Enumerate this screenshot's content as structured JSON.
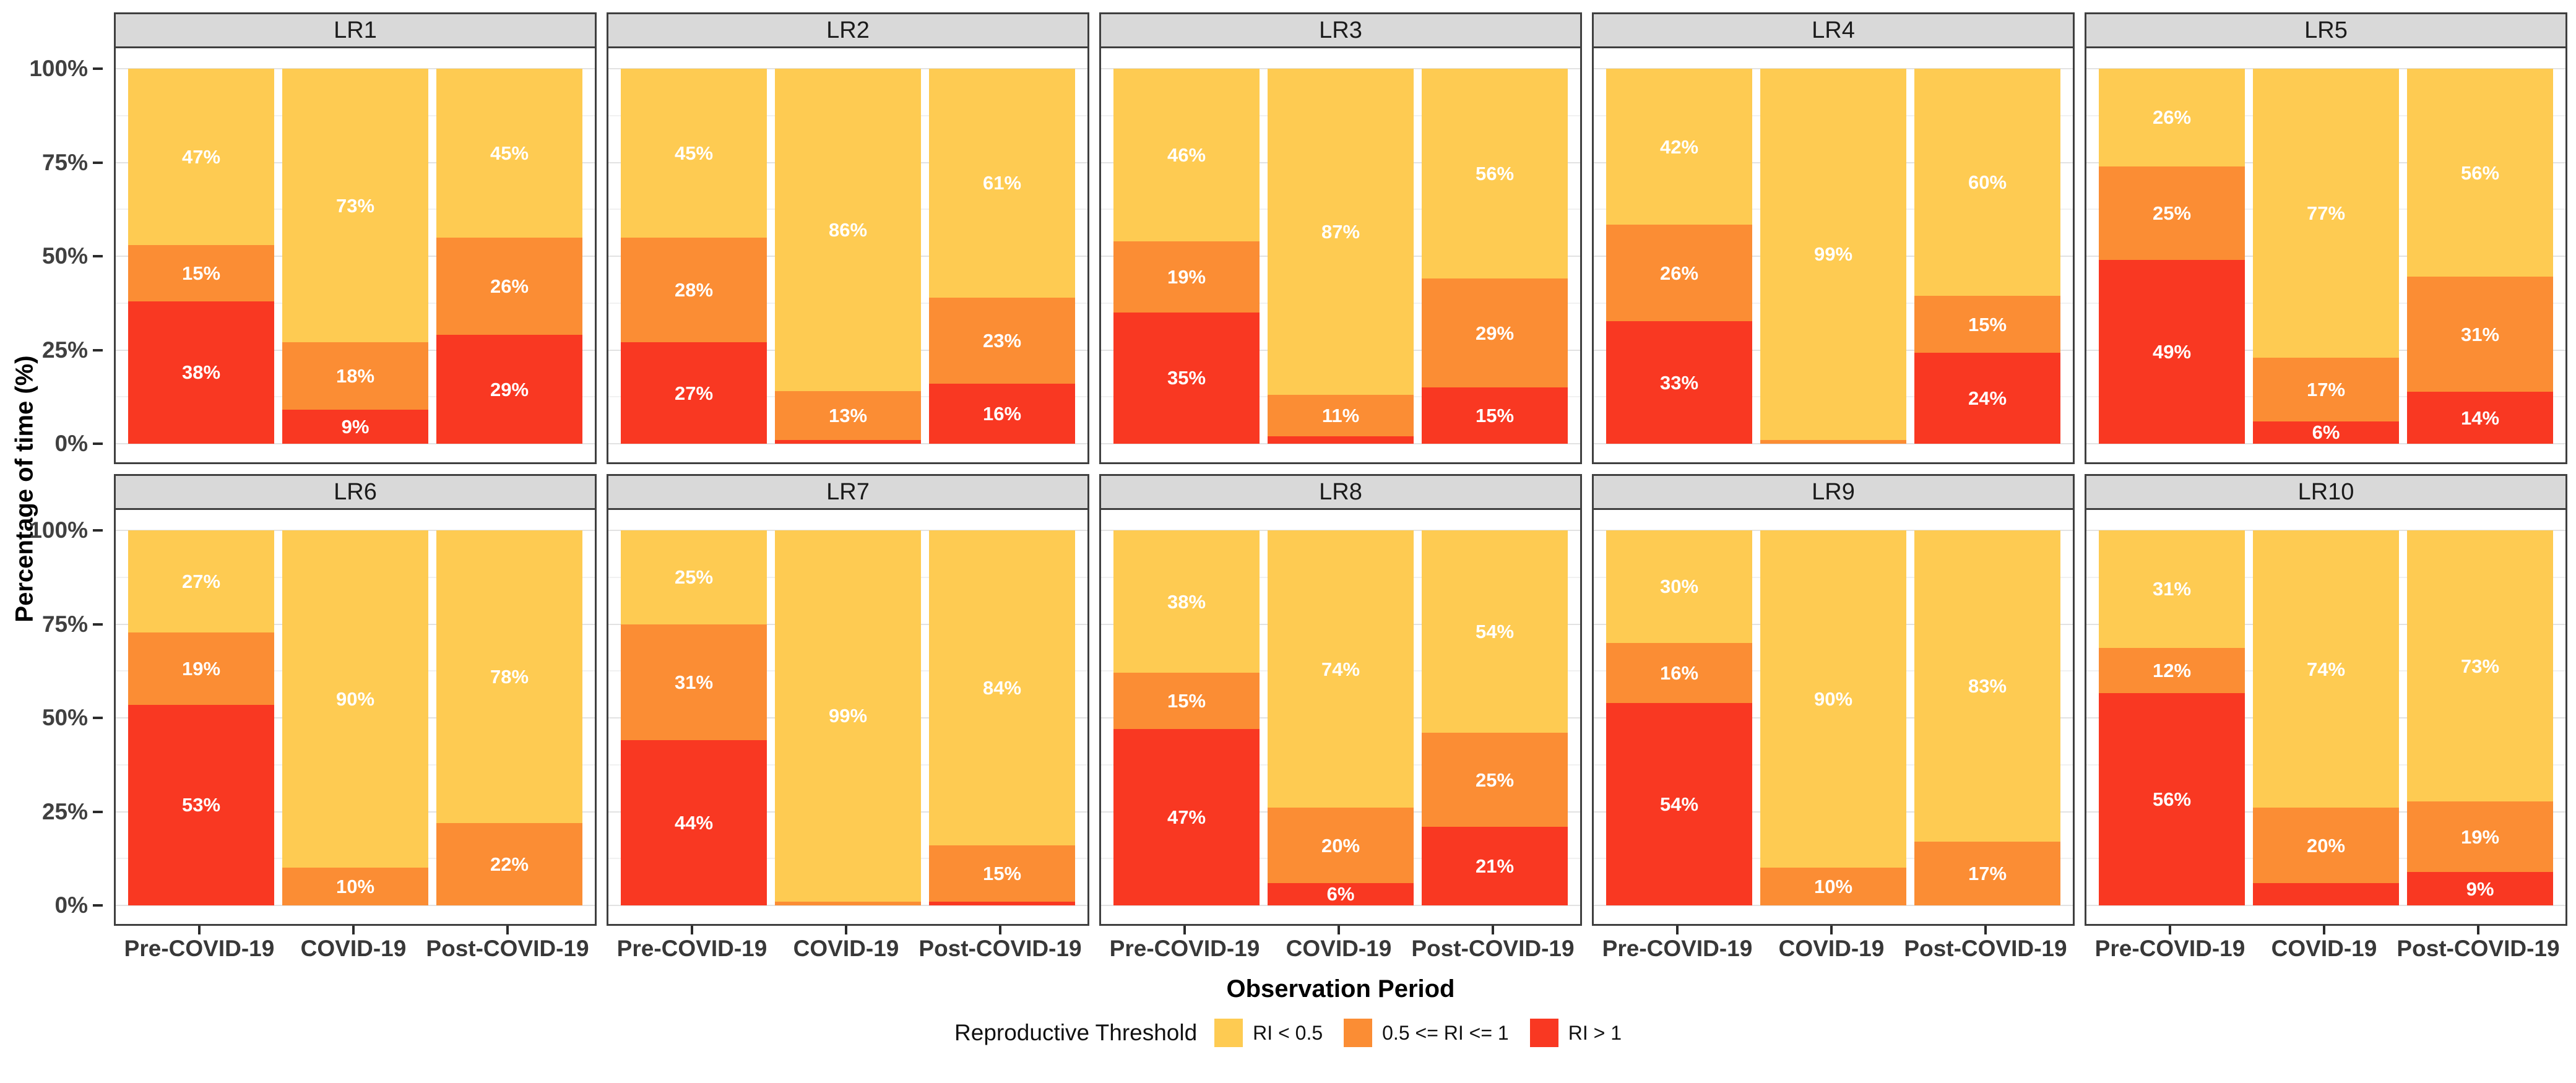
{
  "chart_data": {
    "type": "bar",
    "variant": "stacked-percent-faceted",
    "ylabel": "Percentage of time (%)",
    "xlabel": "Observation Period",
    "categories": [
      "Pre-COVID-19",
      "COVID-19",
      "Post-COVID-19"
    ],
    "y_ticks": [
      {
        "label": "0%",
        "value": 0
      },
      {
        "label": "25%",
        "value": 25
      },
      {
        "label": "50%",
        "value": 50
      },
      {
        "label": "75%",
        "value": 75
      },
      {
        "label": "100%",
        "value": 100
      }
    ],
    "y_minor_gridlines": [
      12.5,
      37.5,
      62.5,
      87.5
    ],
    "ylim": [
      0,
      100
    ],
    "grid": "on",
    "legend_position": "bottom",
    "legend": {
      "title": "Reproductive Threshold",
      "items": [
        {
          "label": "RI < 0.5",
          "color": "#FECB52"
        },
        {
          "label": "0.5 <= RI <= 1",
          "color": "#FB8D34"
        },
        {
          "label": "RI > 1",
          "color": "#F93822"
        }
      ]
    },
    "segment_order_top_to_bottom": [
      "RI < 0.5",
      "0.5 <= RI <= 1",
      "RI > 1"
    ],
    "facets": [
      {
        "name": "LR1",
        "values": [
          [
            47,
            15,
            38
          ],
          [
            73,
            18,
            9
          ],
          [
            45,
            26,
            29
          ]
        ],
        "labels": [
          [
            "47%",
            "15%",
            "38%"
          ],
          [
            "73%",
            "18%",
            "9%"
          ],
          [
            "45%",
            "26%",
            "29%"
          ]
        ]
      },
      {
        "name": "LR2",
        "values": [
          [
            45,
            28,
            27
          ],
          [
            86,
            13,
            1
          ],
          [
            61,
            23,
            16
          ]
        ],
        "labels": [
          [
            "45%",
            "28%",
            "27%"
          ],
          [
            "86%",
            "13%",
            ""
          ],
          [
            "61%",
            "23%",
            "16%"
          ]
        ]
      },
      {
        "name": "LR3",
        "values": [
          [
            46,
            19,
            35
          ],
          [
            87,
            11,
            2
          ],
          [
            56,
            29,
            15
          ]
        ],
        "labels": [
          [
            "46%",
            "19%",
            "35%"
          ],
          [
            "87%",
            "11%",
            ""
          ],
          [
            "56%",
            "29%",
            "15%"
          ]
        ]
      },
      {
        "name": "LR4",
        "values": [
          [
            42,
            26,
            33
          ],
          [
            99,
            1,
            0
          ],
          [
            60,
            15,
            24
          ]
        ],
        "labels": [
          [
            "42%",
            "26%",
            "33%"
          ],
          [
            "99%",
            "",
            ""
          ],
          [
            "60%",
            "15%",
            "24%"
          ]
        ]
      },
      {
        "name": "LR5",
        "values": [
          [
            26,
            25,
            49
          ],
          [
            77,
            17,
            6
          ],
          [
            56,
            31,
            14
          ]
        ],
        "labels": [
          [
            "26%",
            "25%",
            "49%"
          ],
          [
            "77%",
            "17%",
            "6%"
          ],
          [
            "56%",
            "31%",
            "14%"
          ]
        ]
      },
      {
        "name": "LR6",
        "values": [
          [
            27,
            19,
            53
          ],
          [
            90,
            10,
            0
          ],
          [
            78,
            22,
            0
          ]
        ],
        "labels": [
          [
            "27%",
            "19%",
            "53%"
          ],
          [
            "90%",
            "10%",
            ""
          ],
          [
            "78%",
            "22%",
            ""
          ]
        ]
      },
      {
        "name": "LR7",
        "values": [
          [
            25,
            31,
            44
          ],
          [
            99,
            1,
            0
          ],
          [
            84,
            15,
            1
          ]
        ],
        "labels": [
          [
            "25%",
            "31%",
            "44%"
          ],
          [
            "99%",
            "",
            ""
          ],
          [
            "84%",
            "15%",
            ""
          ]
        ]
      },
      {
        "name": "LR8",
        "values": [
          [
            38,
            15,
            47
          ],
          [
            74,
            20,
            6
          ],
          [
            54,
            25,
            21
          ]
        ],
        "labels": [
          [
            "38%",
            "15%",
            "47%"
          ],
          [
            "74%",
            "20%",
            "6%"
          ],
          [
            "54%",
            "25%",
            "21%"
          ]
        ]
      },
      {
        "name": "LR9",
        "values": [
          [
            30,
            16,
            54
          ],
          [
            90,
            10,
            0
          ],
          [
            83,
            17,
            0
          ]
        ],
        "labels": [
          [
            "30%",
            "16%",
            "54%"
          ],
          [
            "90%",
            "10%",
            ""
          ],
          [
            "83%",
            "17%",
            ""
          ]
        ]
      },
      {
        "name": "LR10",
        "values": [
          [
            31,
            12,
            56
          ],
          [
            74,
            20,
            6
          ],
          [
            73,
            19,
            9
          ]
        ],
        "labels": [
          [
            "31%",
            "12%",
            "56%"
          ],
          [
            "74%",
            "20%",
            ""
          ],
          [
            "73%",
            "19%",
            "9%"
          ]
        ]
      }
    ],
    "colors": {
      "low": "#FECB52",
      "mid": "#FB8D34",
      "high": "#F93822",
      "strip_bg": "#D9D9D9",
      "panel_border": "#3F3F3F",
      "grid_major": "#E2E2E2",
      "grid_minor": "#F1F1F1",
      "axis_text": "#404040",
      "bar_label": "#FFFFFF"
    }
  }
}
